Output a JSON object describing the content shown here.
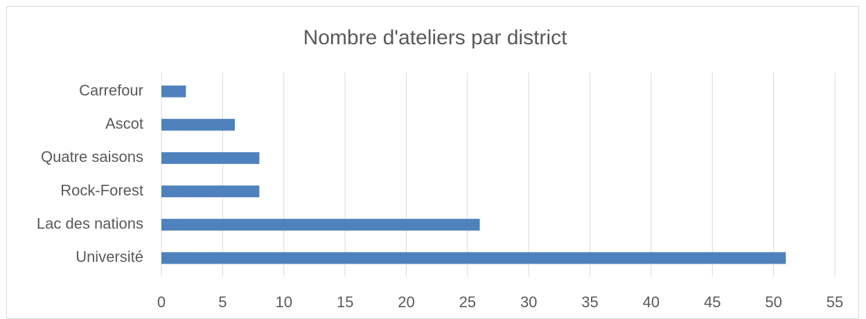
{
  "chart_data": {
    "type": "bar",
    "orientation": "horizontal",
    "title": "Nombre d'ateliers par district",
    "categories": [
      "Carrefour",
      "Ascot",
      "Quatre saisons",
      "Rock-Forest",
      "Lac des nations",
      "Université"
    ],
    "values": [
      2,
      6,
      8,
      8,
      26,
      51
    ],
    "color": "#4f81bd",
    "xlim": [
      0,
      55
    ],
    "xticks": [
      0,
      5,
      10,
      15,
      20,
      25,
      30,
      35,
      40,
      45,
      50,
      55
    ],
    "grid": true
  }
}
